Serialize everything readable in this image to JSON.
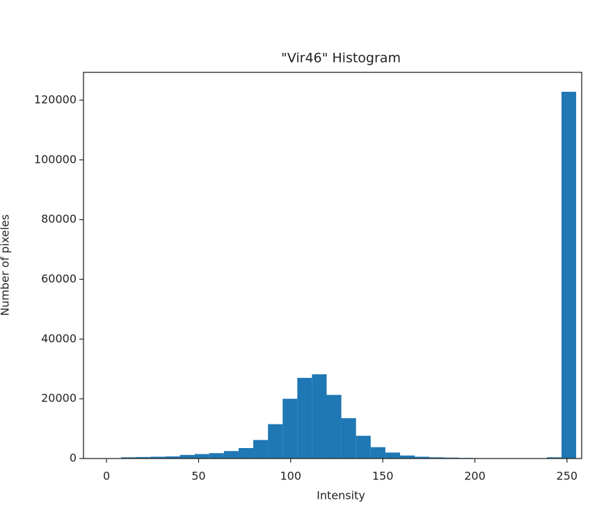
{
  "chart_data": {
    "type": "histogram",
    "title": "\"Vir46\" Histogram",
    "x_label": "Intensity",
    "y_label": "Number of pixeles",
    "bins": [
      0,
      7.97,
      15.94,
      23.91,
      31.88,
      39.84,
      47.81,
      55.78,
      63.75,
      71.72,
      79.69,
      87.66,
      95.63,
      103.59,
      111.56,
      119.53,
      127.5,
      135.47,
      143.44,
      151.41,
      159.38,
      167.34,
      175.31,
      183.28,
      191.25,
      199.22,
      207.19,
      215.16,
      223.13,
      231.09,
      239.06,
      247.03,
      255
    ],
    "values": [
      100,
      400,
      500,
      600,
      700,
      1200,
      1500,
      1800,
      2500,
      3500,
      6200,
      11500,
      20000,
      27000,
      28200,
      21300,
      13500,
      7600,
      3800,
      2000,
      1000,
      600,
      400,
      300,
      200,
      100,
      50,
      50,
      50,
      50,
      400,
      122800
    ],
    "color": "#1f77b4",
    "xlim": [
      -12.5,
      258
    ],
    "xticks": [
      0,
      50,
      100,
      150,
      200,
      250
    ],
    "ylim": [
      0,
      129300
    ],
    "yticks": [
      0,
      20000,
      40000,
      60000,
      80000,
      100000,
      120000
    ]
  }
}
